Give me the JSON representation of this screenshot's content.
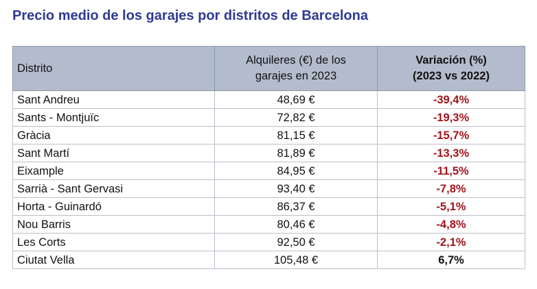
{
  "title": "Precio medio de los garajes por distritos de Barcelona",
  "table": {
    "headers": {
      "district": "Distrito",
      "rent_line1": "Alquileres (€) de los",
      "rent_line2": "garajes en 2023",
      "variation_line1": "Variación (%)",
      "variation_line2": "(2023 vs 2022)"
    },
    "rows": [
      {
        "district": "Sant Andreu",
        "rent": "48,69 €",
        "variation": "-39,4%",
        "trend": "neg"
      },
      {
        "district": "Sants - Montjuïc",
        "rent": "72,82 €",
        "variation": "-19,3%",
        "trend": "neg"
      },
      {
        "district": "Gràcia",
        "rent": "81,15 €",
        "variation": "-15,7%",
        "trend": "neg"
      },
      {
        "district": "Sant Martí",
        "rent": "81,89 €",
        "variation": "-13,3%",
        "trend": "neg"
      },
      {
        "district": "Eixample",
        "rent": "84,95 €",
        "variation": "-11,5%",
        "trend": "neg"
      },
      {
        "district": "Sarrià - Sant Gervasi",
        "rent": "93,40 €",
        "variation": "-7,8%",
        "trend": "neg"
      },
      {
        "district": "Horta - Guinardó",
        "rent": "86,37 €",
        "variation": "-5,1%",
        "trend": "neg"
      },
      {
        "district": "Nou Barris",
        "rent": "80,46 €",
        "variation": "-4,8%",
        "trend": "neg"
      },
      {
        "district": "Les Corts",
        "rent": "92,50 €",
        "variation": "-2,1%",
        "trend": "neg"
      },
      {
        "district": "Ciutat Vella",
        "rent": "105,48 €",
        "variation": "6,7%",
        "trend": "pos"
      }
    ]
  },
  "colors": {
    "title": "#2e3a93",
    "header_background": "#b3bccd",
    "negative_variation": "#a3141b",
    "positive_variation": "#111111"
  }
}
